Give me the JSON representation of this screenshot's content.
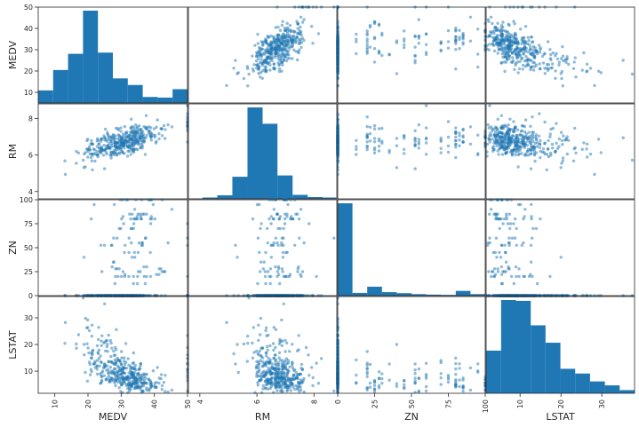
{
  "chart_data": {
    "type": "scatter_matrix",
    "variables": [
      "MEDV",
      "RM",
      "ZN",
      "LSTAT"
    ],
    "diagonal": "histogram",
    "color": "#1f77b4",
    "point_alpha": 0.5,
    "ranges": {
      "MEDV": [
        5,
        50
      ],
      "RM": [
        3.6,
        8.8
      ],
      "ZN": [
        0,
        100
      ],
      "LSTAT": [
        1.7,
        38
      ]
    },
    "ticks": {
      "MEDV": {
        "x": [
          "10",
          "20",
          "30",
          "40",
          "50"
        ],
        "y": [
          "10",
          "20",
          "30",
          "40",
          "50"
        ]
      },
      "RM": {
        "x": [
          "4",
          "6",
          "8"
        ],
        "y": [
          "4",
          "6",
          "8"
        ]
      },
      "ZN": {
        "x": [
          "0",
          "25",
          "50",
          "75",
          "100"
        ],
        "y": [
          "0",
          "25",
          "50",
          "75",
          "100"
        ]
      },
      "LSTAT": {
        "x": [
          "10",
          "20",
          "30"
        ],
        "y": [
          "10",
          "20",
          "30"
        ]
      }
    },
    "histograms": {
      "MEDV": {
        "edges": [
          5,
          9.5,
          14,
          18.5,
          23,
          27.5,
          32,
          36.5,
          41,
          45.5,
          50
        ],
        "counts": [
          21,
          55,
          82,
          154,
          84,
          41,
          30,
          10,
          9,
          23
        ]
      },
      "RM": {
        "edges": [
          3.56,
          4.09,
          4.61,
          5.14,
          5.67,
          6.2,
          6.72,
          7.25,
          7.78,
          8.31,
          8.78
        ],
        "counts": [
          1,
          3,
          8,
          50,
          207,
          170,
          53,
          9,
          4,
          3
        ]
      },
      "ZN": {
        "edges": [
          0,
          10,
          20,
          30,
          40,
          50,
          60,
          70,
          80,
          90,
          100
        ],
        "counts": [
          372,
          11,
          36,
          14,
          10,
          6,
          4,
          3,
          19,
          6
        ]
      },
      "LSTAT": {
        "edges": [
          1.73,
          5.36,
          8.98,
          12.61,
          16.23,
          19.86,
          23.48,
          27.11,
          30.74,
          34.36,
          37.97
        ],
        "counts": [
          54,
          118,
          117,
          86,
          64,
          31,
          25,
          15,
          10,
          4
        ]
      }
    }
  }
}
